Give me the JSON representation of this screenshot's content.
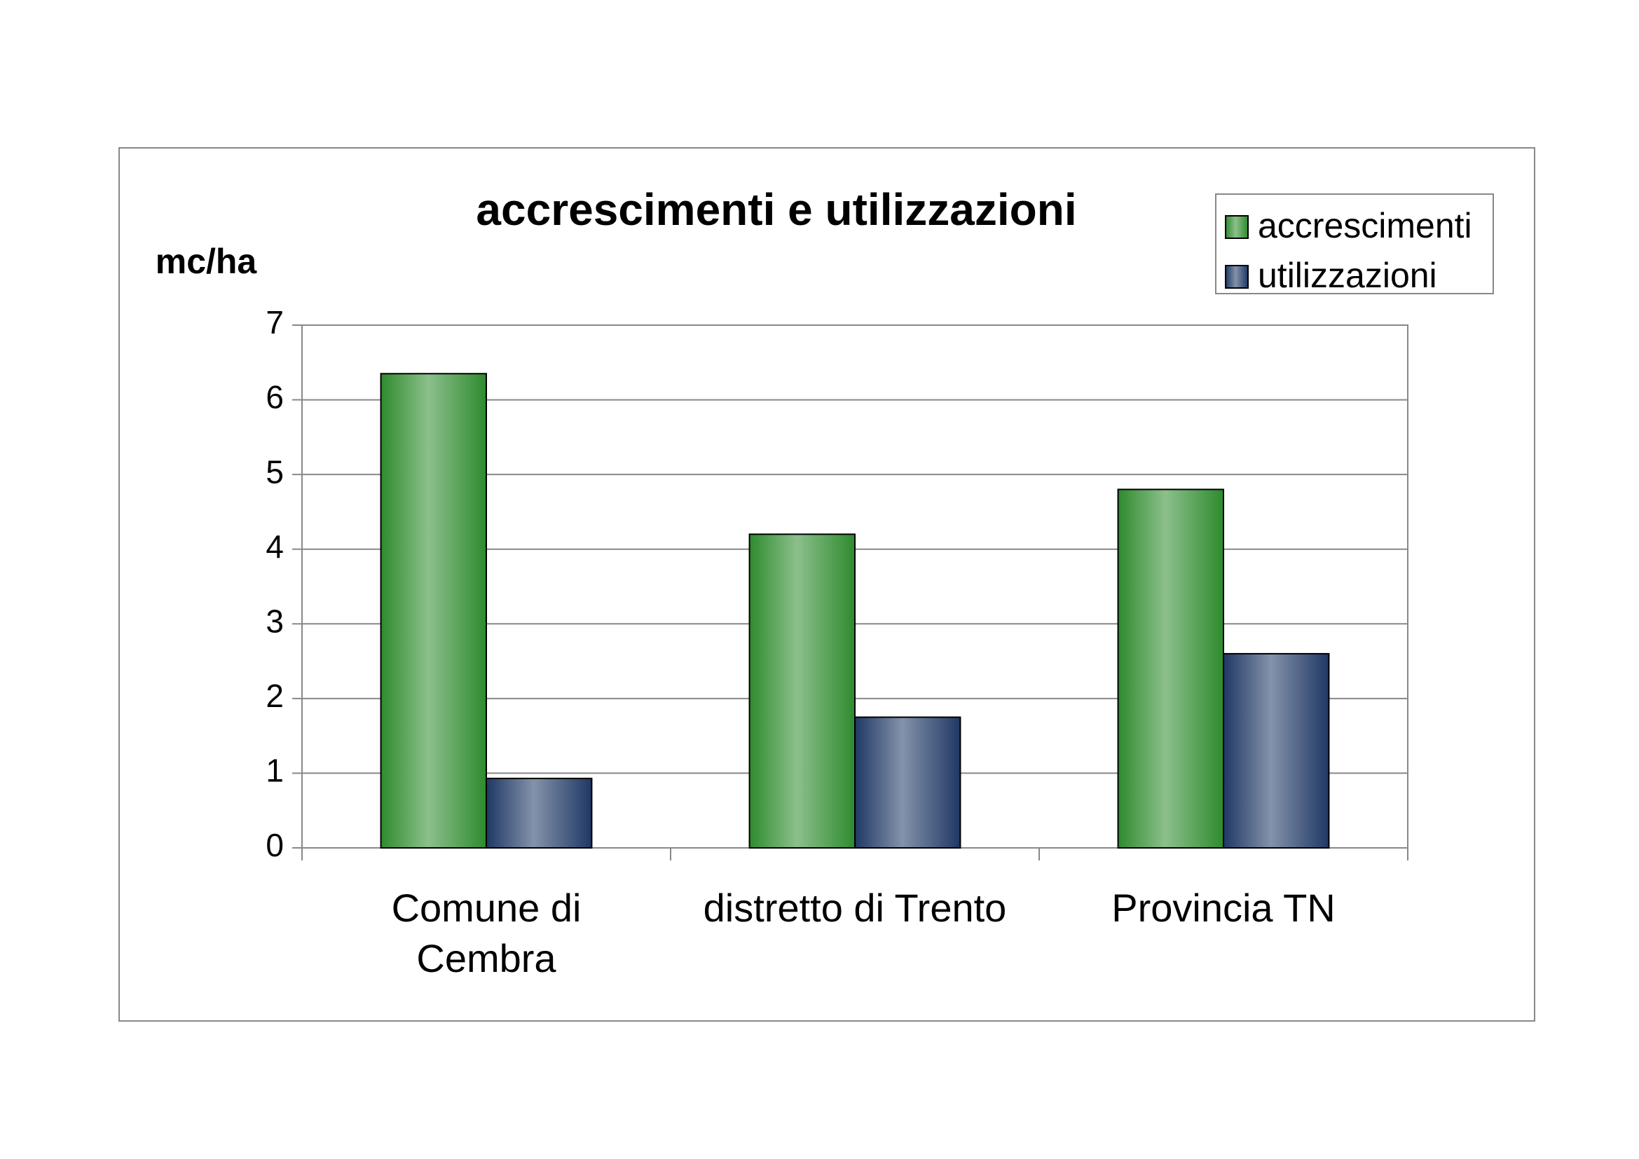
{
  "chart_data": {
    "type": "bar",
    "title": "accrescimenti e utilizzazioni",
    "y_label": "mc/ha",
    "categories": [
      "Comune di\nCembra",
      "distretto di Trento",
      "Provincia TN"
    ],
    "series": [
      {
        "name": "accrescimenti",
        "color": "#2e8b2e",
        "values": [
          6.35,
          4.2,
          4.8
        ]
      },
      {
        "name": "utilizzazioni",
        "color": "#1f3864",
        "values": [
          0.93,
          1.75,
          2.6
        ]
      }
    ],
    "ylim": [
      0,
      7
    ],
    "yticks": [
      0,
      1,
      2,
      3,
      4,
      5,
      6,
      7
    ],
    "grid": true,
    "legend": "top-right"
  }
}
